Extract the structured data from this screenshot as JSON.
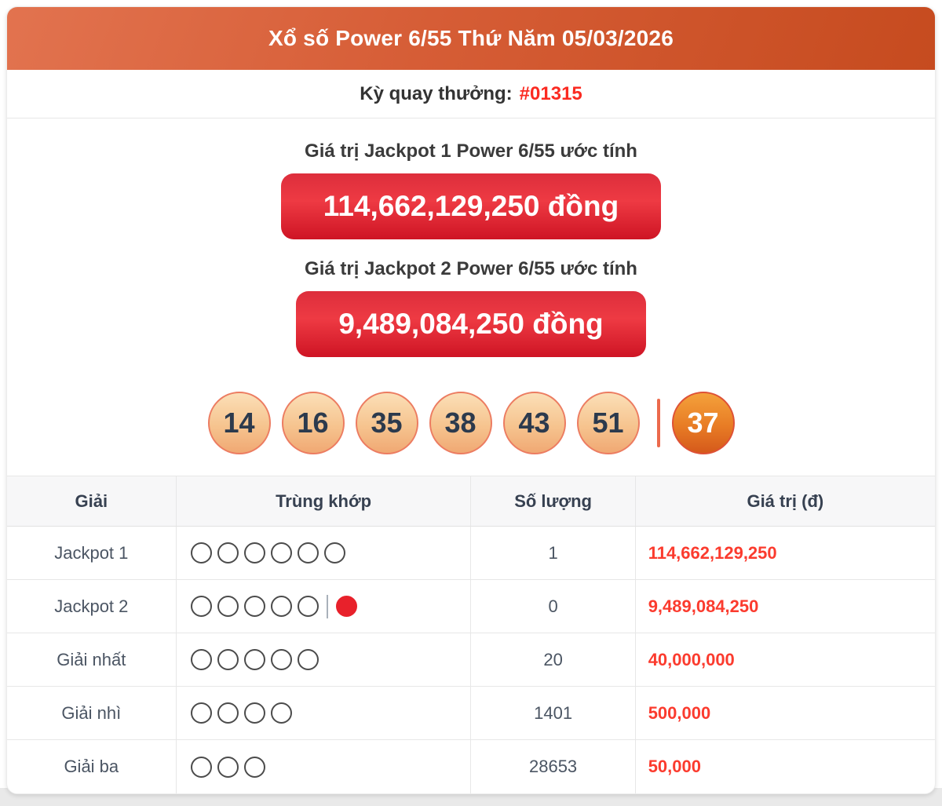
{
  "header": {
    "title": "Xổ số Power 6/55 Thứ Năm 05/03/2026"
  },
  "draw": {
    "label": "Kỳ quay thưởng:",
    "id": "#01315"
  },
  "jackpot1": {
    "label": "Giá trị Jackpot 1 Power 6/55 ước tính",
    "value": "114,662,129,250 đồng"
  },
  "jackpot2": {
    "label": "Giá trị Jackpot 2 Power 6/55 ước tính",
    "value": "9,489,084,250 đồng"
  },
  "balls": {
    "main": [
      "14",
      "16",
      "35",
      "38",
      "43",
      "51"
    ],
    "special": "37"
  },
  "table": {
    "headers": [
      "Giải",
      "Trùng khớp",
      "Số lượng",
      "Giá trị (đ)"
    ],
    "rows": [
      {
        "prize": "Jackpot 1",
        "match_open": 6,
        "match_special": false,
        "count": "1",
        "value": "114,662,129,250"
      },
      {
        "prize": "Jackpot 2",
        "match_open": 5,
        "match_special": true,
        "count": "0",
        "value": "9,489,084,250"
      },
      {
        "prize": "Giải nhất",
        "match_open": 5,
        "match_special": false,
        "count": "20",
        "value": "40,000,000"
      },
      {
        "prize": "Giải nhì",
        "match_open": 4,
        "match_special": false,
        "count": "1401",
        "value": "500,000"
      },
      {
        "prize": "Giải ba",
        "match_open": 3,
        "match_special": false,
        "count": "28653",
        "value": "50,000"
      }
    ]
  },
  "colors": {
    "header_gradient_start": "#e2734f",
    "header_gradient_end": "#c64b1f",
    "jackpot_button_red": "#e0222f",
    "accent_red_text": "#fb3b2e",
    "ball_peach": "#f6c48f",
    "ball_special_orange": "#e87c25",
    "match_dot_red": "#e8212b"
  }
}
